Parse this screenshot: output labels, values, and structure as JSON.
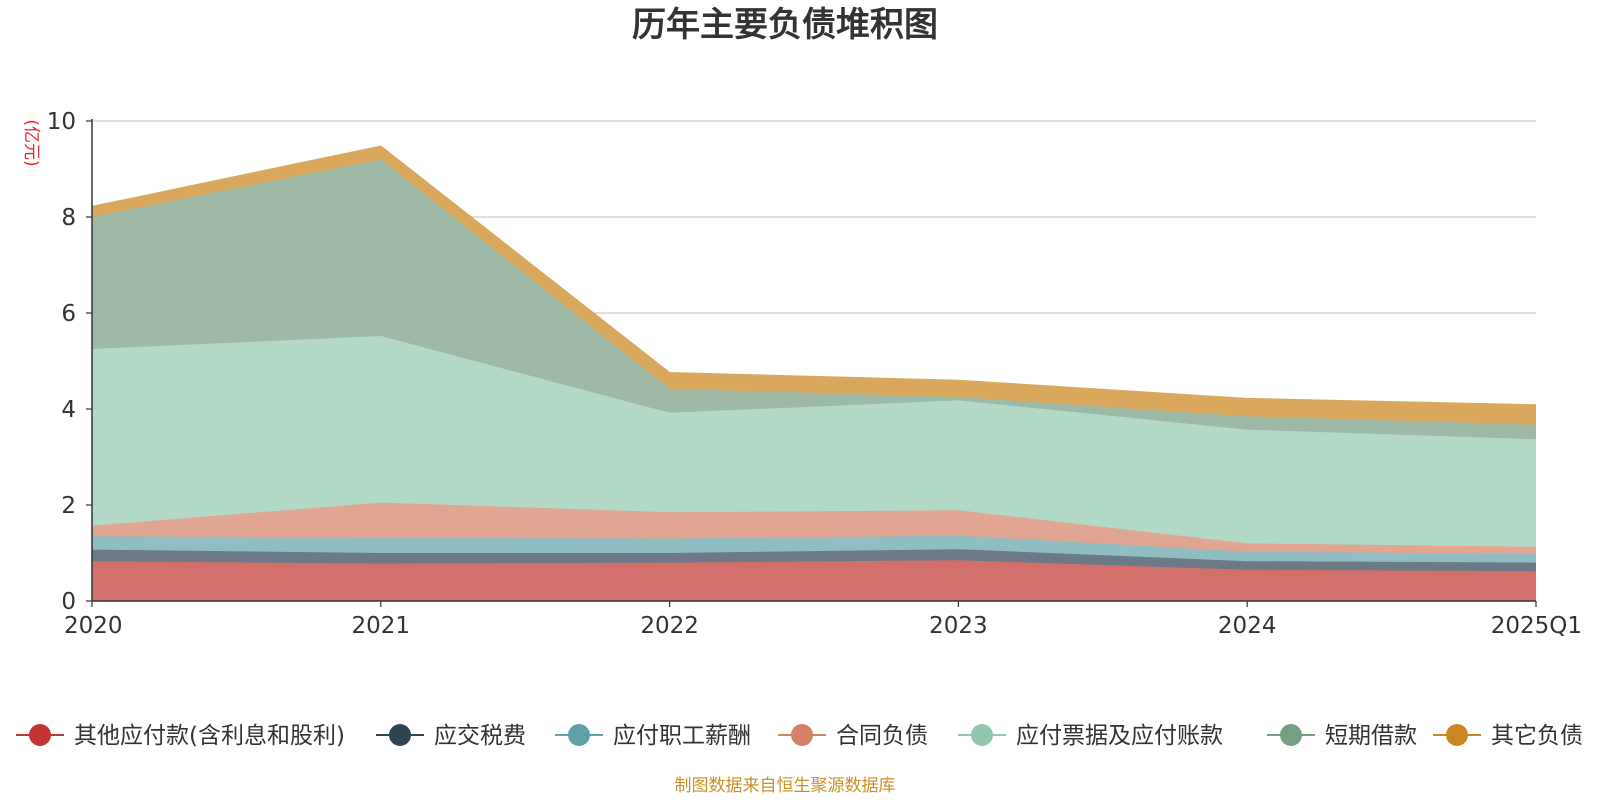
{
  "chart_data": {
    "type": "area",
    "stacked": true,
    "title": "历年主要负债堆积图",
    "ylabel": "(亿元)",
    "xlabel": "",
    "ylim": [
      0,
      10
    ],
    "yticks": [
      "0",
      "2",
      "4",
      "6",
      "8",
      "10"
    ],
    "categories": [
      "2020",
      "2021",
      "2022",
      "2023",
      "2024",
      "2025Q1"
    ],
    "grid": true,
    "legend_position": "bottom",
    "series": [
      {
        "name": "其他应付款(含利息和股利)",
        "color": "#c23531",
        "area_color": "#d4706c",
        "values": [
          0.83,
          0.78,
          0.8,
          0.85,
          0.65,
          0.62
        ]
      },
      {
        "name": "应交税费",
        "color": "#2f4554",
        "area_color": "#6b7a85",
        "values": [
          0.24,
          0.22,
          0.2,
          0.23,
          0.18,
          0.18
        ]
      },
      {
        "name": "应付职工薪酬",
        "color": "#61a0a8",
        "area_color": "#8fbdc2",
        "values": [
          0.28,
          0.32,
          0.3,
          0.28,
          0.2,
          0.18
        ]
      },
      {
        "name": "合同负债",
        "color": "#d48265",
        "area_color": "#e0a692",
        "values": [
          0.22,
          0.73,
          0.55,
          0.53,
          0.17,
          0.15
        ]
      },
      {
        "name": "应付票据及应付账款",
        "color": "#91c7ae",
        "area_color": "#b2d9c6",
        "values": [
          3.68,
          3.47,
          2.07,
          2.29,
          2.37,
          2.24
        ]
      },
      {
        "name": "短期借款",
        "color": "#749f83",
        "area_color": "#9eb9a6",
        "values": [
          2.75,
          3.68,
          0.5,
          0.07,
          0.28,
          0.3
        ]
      },
      {
        "name": "其它负债",
        "color": "#ca8622",
        "area_color": "#d9a85c",
        "values": [
          0.22,
          0.28,
          0.34,
          0.35,
          0.37,
          0.42
        ]
      }
    ]
  },
  "footer": {
    "source": "制图数据来自恒生聚源数据库"
  }
}
